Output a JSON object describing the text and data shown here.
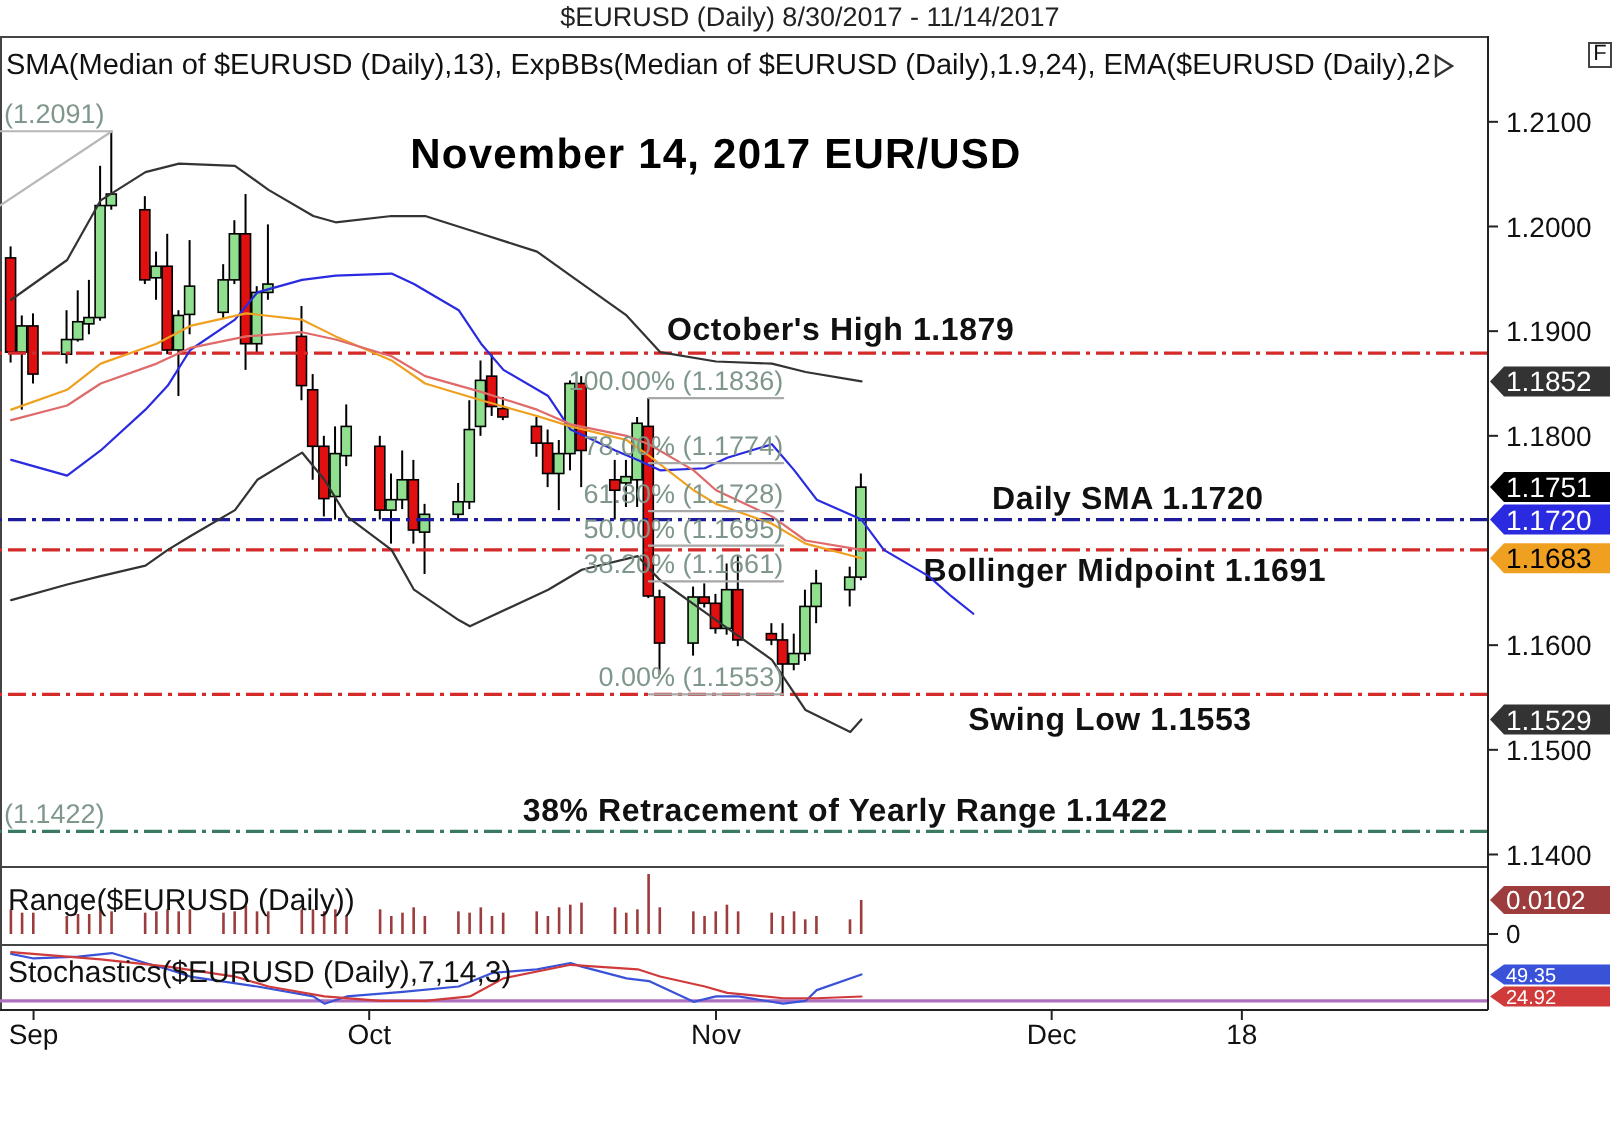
{
  "chart_data": [
    {
      "type": "candlestick",
      "title": "$EURUSD (Daily) 8/30/2017 - 11/14/2017",
      "subtitle": "November 14, 2017 EUR/USD",
      "annotations": [
        "SMA(Median of $EURUSD (Daily),13), ExpBBs(Median of $EURUSD (Daily),1.9,24), EMA($EURUSD (Daily),2",
        "F",
        {
          "text": "(1.2091)",
          "x": "2017-08-29",
          "y": 1.2091
        },
        {
          "text": "(1.1422)",
          "x": "2017-08-29",
          "y": 1.1422
        },
        {
          "text": "100.00% (1.1836)",
          "x": "2017-11-07",
          "y": 1.1836
        },
        {
          "text": "78.00% (1.1774)",
          "x": "2017-11-07",
          "y": 1.1774
        },
        {
          "text": "61.80% (1.1728)",
          "x": "2017-11-07",
          "y": 1.1728
        },
        {
          "text": "50.00% (1.1695)",
          "x": "2017-11-07",
          "y": 1.1695
        },
        {
          "text": "38.20% (1.1661)",
          "x": "2017-11-07",
          "y": 1.1661
        },
        {
          "text": "0.00% (1.1553)",
          "x": "2017-11-07",
          "y": 1.1553
        }
      ],
      "x": [
        "2017-08-30",
        "2017-08-31",
        "2017-09-01",
        "2017-09-04",
        "2017-09-05",
        "2017-09-06",
        "2017-09-07",
        "2017-09-08",
        "2017-09-11",
        "2017-09-12",
        "2017-09-13",
        "2017-09-14",
        "2017-09-15",
        "2017-09-18",
        "2017-09-19",
        "2017-09-20",
        "2017-09-21",
        "2017-09-22",
        "2017-09-25",
        "2017-09-26",
        "2017-09-27",
        "2017-09-28",
        "2017-09-29",
        "2017-10-02",
        "2017-10-03",
        "2017-10-04",
        "2017-10-05",
        "2017-10-06",
        "2017-10-09",
        "2017-10-10",
        "2017-10-11",
        "2017-10-12",
        "2017-10-13",
        "2017-10-16",
        "2017-10-17",
        "2017-10-18",
        "2017-10-19",
        "2017-10-20",
        "2017-10-23",
        "2017-10-24",
        "2017-10-25",
        "2017-10-26",
        "2017-10-27",
        "2017-10-30",
        "2017-10-31",
        "2017-11-01",
        "2017-11-02",
        "2017-11-03",
        "2017-11-06",
        "2017-11-07",
        "2017-11-08",
        "2017-11-09",
        "2017-11-10",
        "2017-11-13",
        "2017-11-14"
      ],
      "ohlc": [
        [
          1.197,
          1.1981,
          1.187,
          1.188
        ],
        [
          1.188,
          1.1915,
          1.1825,
          1.1905
        ],
        [
          1.1905,
          1.1917,
          1.185,
          1.1859
        ],
        [
          1.1878,
          1.192,
          1.1869,
          1.1892
        ],
        [
          1.1892,
          1.1939,
          1.189,
          1.1909
        ],
        [
          1.1907,
          1.1949,
          1.1897,
          1.1913
        ],
        [
          1.1913,
          1.2058,
          1.191,
          1.202
        ],
        [
          1.202,
          1.2091,
          1.2016,
          1.2031
        ],
        [
          1.2016,
          1.2029,
          1.1945,
          1.1949
        ],
        [
          1.1951,
          1.1976,
          1.193,
          1.1962
        ],
        [
          1.1962,
          1.1993,
          1.1878,
          1.1882
        ],
        [
          1.1882,
          1.192,
          1.1838,
          1.1915
        ],
        [
          1.1916,
          1.1987,
          1.1897,
          1.1943
        ],
        [
          1.1918,
          1.1964,
          1.1912,
          1.1949
        ],
        [
          1.1949,
          1.2006,
          1.1945,
          1.1993
        ],
        [
          1.1993,
          1.2031,
          1.1863,
          1.1888
        ],
        [
          1.1888,
          1.1943,
          1.1878,
          1.1937
        ],
        [
          1.1937,
          1.2002,
          1.193,
          1.1945
        ],
        [
          1.1895,
          1.1924,
          1.1834,
          1.1848
        ],
        [
          1.1844,
          1.1859,
          1.1758,
          1.179
        ],
        [
          1.179,
          1.18,
          1.1723,
          1.174
        ],
        [
          1.1742,
          1.1809,
          1.172,
          1.1783
        ],
        [
          1.1781,
          1.183,
          1.1771,
          1.1809
        ],
        [
          1.179,
          1.18,
          1.172,
          1.1729
        ],
        [
          1.1729,
          1.1764,
          1.1697,
          1.1739
        ],
        [
          1.1739,
          1.1786,
          1.173,
          1.1758
        ],
        [
          1.1758,
          1.1777,
          1.1697,
          1.171
        ],
        [
          1.1708,
          1.1735,
          1.1668,
          1.1725
        ],
        [
          1.1725,
          1.1755,
          1.172,
          1.1737
        ],
        [
          1.1737,
          1.1834,
          1.173,
          1.1806
        ],
        [
          1.1809,
          1.1872,
          1.18,
          1.1853
        ],
        [
          1.1857,
          1.1879,
          1.1819,
          1.1828
        ],
        [
          1.1826,
          1.1837,
          1.1815,
          1.1818
        ],
        [
          1.1809,
          1.1818,
          1.178,
          1.1793
        ],
        [
          1.1793,
          1.1806,
          1.1751,
          1.1764
        ],
        [
          1.1764,
          1.1796,
          1.1729,
          1.1783
        ],
        [
          1.1783,
          1.1853,
          1.1767,
          1.185
        ],
        [
          1.185,
          1.1857,
          1.1751,
          1.1786
        ],
        [
          1.1758,
          1.1777,
          1.172,
          1.1748
        ],
        [
          1.1755,
          1.1777,
          1.1732,
          1.1761
        ],
        [
          1.1758,
          1.1818,
          1.1732,
          1.1812
        ],
        [
          1.1809,
          1.1836,
          1.1645,
          1.1647
        ],
        [
          1.1646,
          1.1653,
          1.1572,
          1.1602
        ],
        [
          1.1602,
          1.1656,
          1.159,
          1.1646
        ],
        [
          1.1646,
          1.1659,
          1.1636,
          1.164
        ],
        [
          1.164,
          1.1649,
          1.1611,
          1.1616
        ],
        [
          1.1616,
          1.1678,
          1.161,
          1.1653
        ],
        [
          1.1653,
          1.1685,
          1.1599,
          1.1605
        ],
        [
          1.1611,
          1.1621,
          1.16,
          1.1605
        ],
        [
          1.1605,
          1.1621,
          1.1553,
          1.1582
        ],
        [
          1.1582,
          1.1611,
          1.1576,
          1.1592
        ],
        [
          1.1592,
          1.1653,
          1.1585,
          1.1637
        ],
        [
          1.1637,
          1.1672,
          1.1621,
          1.1659
        ],
        [
          1.1653,
          1.1675,
          1.1637,
          1.1665
        ],
        [
          1.1665,
          1.1764,
          1.1662,
          1.1751
        ]
      ],
      "color": "#000000",
      "colors": [
        "#e01010",
        "#8fdf8f",
        "#e01010",
        "#8fdf8f",
        "#8fdf8f",
        "#8fdf8f",
        "#8fdf8f",
        "#8fdf8f",
        "#e01010",
        "#8fdf8f",
        "#e01010",
        "#8fdf8f",
        "#8fdf8f",
        "#8fdf8f",
        "#8fdf8f",
        "#e01010",
        "#8fdf8f",
        "#8fdf8f",
        "#e01010",
        "#e01010",
        "#e01010",
        "#8fdf8f",
        "#8fdf8f",
        "#e01010",
        "#8fdf8f",
        "#8fdf8f",
        "#e01010",
        "#8fdf8f",
        "#8fdf8f",
        "#8fdf8f",
        "#8fdf8f",
        "#e01010",
        "#e01010",
        "#e01010",
        "#e01010",
        "#8fdf8f",
        "#8fdf8f",
        "#e01010",
        "#e01010",
        "#8fdf8f",
        "#8fdf8f",
        "#e01010",
        "#e01010",
        "#8fdf8f",
        "#e01010",
        "#e01010",
        "#8fdf8f",
        "#e01010",
        "#e01010",
        "#e01010",
        "#8fdf8f",
        "#8fdf8f",
        "#8fdf8f",
        "#8fdf8f",
        "#8fdf8f"
      ],
      "series": [
        {
          "type": "line",
          "color": "#333333",
          "x": [
            "2017-08-30",
            "2017-09-04",
            "2017-09-07",
            "2017-09-11",
            "2017-09-14",
            "2017-09-19",
            "2017-09-22",
            "2017-09-26",
            "2017-09-28",
            "2017-10-03",
            "2017-10-06",
            "2017-10-11",
            "2017-10-16",
            "2017-10-19",
            "2017-10-24",
            "2017-10-27",
            "2017-11-01",
            "2017-11-06",
            "2017-11-09",
            "2017-11-14"
          ],
          "values": [
            1.193,
            1.1968,
            1.2025,
            1.2052,
            1.206,
            1.2058,
            1.2035,
            1.201,
            1.2004,
            1.201,
            1.201,
            1.1993,
            1.1976,
            1.1953,
            1.1915,
            1.188,
            1.1871,
            1.1869,
            1.1861,
            1.1852
          ]
        },
        {
          "type": "line",
          "color": "#333333",
          "x": [
            "2017-08-30",
            "2017-09-04",
            "2017-09-07",
            "2017-09-11",
            "2017-09-13",
            "2017-09-15",
            "2017-09-19",
            "2017-09-21",
            "2017-09-25",
            "2017-09-27",
            "2017-09-29",
            "2017-10-03",
            "2017-10-05",
            "2017-10-09",
            "2017-10-10",
            "2017-10-12",
            "2017-10-17",
            "2017-10-20",
            "2017-10-25",
            "2017-10-27",
            "2017-11-01",
            "2017-11-06",
            "2017-11-09",
            "2017-11-13",
            "2017-11-14"
          ],
          "values": [
            1.1643,
            1.1658,
            1.1666,
            1.1676,
            1.1691,
            1.1704,
            1.1729,
            1.1758,
            1.1784,
            1.1758,
            1.1723,
            1.1691,
            1.1653,
            1.1624,
            1.1618,
            1.1628,
            1.1653,
            1.1672,
            1.1685,
            1.1662,
            1.1624,
            1.1586,
            1.1538,
            1.1517,
            1.1529
          ]
        },
        {
          "type": "line",
          "color": "#2a2ae0",
          "x": [
            "2017-08-30",
            "2017-09-04",
            "2017-09-07",
            "2017-09-11",
            "2017-09-13",
            "2017-09-15",
            "2017-09-19",
            "2017-09-21",
            "2017-09-25",
            "2017-09-28",
            "2017-10-03",
            "2017-10-05",
            "2017-10-09",
            "2017-10-11",
            "2017-10-13",
            "2017-10-17",
            "2017-10-19",
            "2017-10-23",
            "2017-10-25",
            "2017-10-27",
            "2017-10-31",
            "2017-11-02",
            "2017-11-06",
            "2017-11-08",
            "2017-11-10",
            "2017-11-14",
            "2017-11-16",
            "2017-11-20",
            "2017-11-22",
            "2017-11-24"
          ],
          "values": [
            1.1777,
            1.1762,
            1.1786,
            1.1825,
            1.1848,
            1.1882,
            1.1911,
            1.1937,
            1.1949,
            1.1953,
            1.1955,
            1.1945,
            1.192,
            1.1888,
            1.1863,
            1.1838,
            1.1806,
            1.1786,
            1.1777,
            1.1767,
            1.1769,
            1.1779,
            1.1792,
            1.1767,
            1.1739,
            1.172,
            1.1691,
            1.1666,
            1.1647,
            1.163
          ]
        },
        {
          "type": "line",
          "color": "#f0a020",
          "x": [
            "2017-08-30",
            "2017-09-04",
            "2017-09-07",
            "2017-09-12",
            "2017-09-15",
            "2017-09-20",
            "2017-09-25",
            "2017-09-28",
            "2017-10-03",
            "2017-10-06",
            "2017-10-11",
            "2017-10-16",
            "2017-10-19",
            "2017-10-24",
            "2017-10-26",
            "2017-10-30",
            "2017-11-01",
            "2017-11-06",
            "2017-11-09",
            "2017-11-14"
          ],
          "values": [
            1.1825,
            1.1844,
            1.1869,
            1.1888,
            1.1905,
            1.1917,
            1.1911,
            1.1895,
            1.1872,
            1.185,
            1.1834,
            1.1819,
            1.1809,
            1.1796,
            1.1781,
            1.1748,
            1.1735,
            1.1716,
            1.1697,
            1.1683
          ]
        },
        {
          "type": "line",
          "color": "#e06a6a",
          "x": [
            "2017-08-30",
            "2017-09-04",
            "2017-09-07",
            "2017-09-12",
            "2017-09-15",
            "2017-09-20",
            "2017-09-25",
            "2017-09-28",
            "2017-10-03",
            "2017-10-06",
            "2017-10-11",
            "2017-10-16",
            "2017-10-19",
            "2017-10-24",
            "2017-10-26",
            "2017-10-30",
            "2017-11-01",
            "2017-11-06",
            "2017-11-09",
            "2017-11-14"
          ],
          "values": [
            1.1815,
            1.1829,
            1.185,
            1.1869,
            1.1884,
            1.1895,
            1.1899,
            1.1892,
            1.1876,
            1.1857,
            1.1842,
            1.1825,
            1.1811,
            1.18,
            1.1792,
            1.1767,
            1.1748,
            1.1723,
            1.17,
            1.1691
          ]
        },
        {
          "type": "line",
          "color": "#a8a8a8",
          "x": [
            "2017-10-26",
            "2017-11-07"
          ],
          "values": [
            1.1836,
            1.1836
          ]
        },
        {
          "type": "line",
          "color": "#a8a8a8",
          "x": [
            "2017-10-26",
            "2017-11-07"
          ],
          "values": [
            1.1774,
            1.1774
          ]
        },
        {
          "type": "line",
          "color": "#a8a8a8",
          "x": [
            "2017-10-26",
            "2017-11-07"
          ],
          "values": [
            1.1728,
            1.1728
          ]
        },
        {
          "type": "line",
          "color": "#a8a8a8",
          "x": [
            "2017-10-26",
            "2017-11-07"
          ],
          "values": [
            1.1695,
            1.1695
          ]
        },
        {
          "type": "line",
          "color": "#a8a8a8",
          "x": [
            "2017-10-26",
            "2017-11-07"
          ],
          "values": [
            1.1661,
            1.1661
          ]
        },
        {
          "type": "line",
          "color": "#a8a8a8",
          "x": [
            "2017-10-26",
            "2017-11-07"
          ],
          "values": [
            1.1553,
            1.1553
          ]
        },
        {
          "type": "line",
          "color": "#b8b8b8",
          "x": [
            "2017-08-29",
            "2017-09-08"
          ],
          "values": [
            1.2091,
            1.2091
          ]
        },
        {
          "type": "line",
          "color": "#b8b8b8",
          "x": [
            "2017-08-29",
            "2017-09-08"
          ],
          "values": [
            1.202,
            1.2091
          ]
        }
      ],
      "ref_lines": [
        {
          "axis": "y",
          "value": 1.1879,
          "label": "October's High 1.1879",
          "color": "#d42a2a",
          "line_style": "dashdot"
        },
        {
          "axis": "y",
          "value": 1.172,
          "label": "Daily SMA 1.1720",
          "color": "#1c1c9a",
          "line_style": "dashdot"
        },
        {
          "axis": "y",
          "value": 1.1691,
          "label": "Bollinger Midpoint 1.1691",
          "color": "#d42a2a",
          "line_style": "dashdot"
        },
        {
          "axis": "y",
          "value": 1.1553,
          "label": "Swing Low 1.1553",
          "color": "#d42a2a",
          "line_style": "dashdot"
        },
        {
          "axis": "y",
          "value": 1.1422,
          "label": "38% Retracement of Yearly Range 1.1422",
          "color": "#3a7a60",
          "line_style": "dashdot"
        }
      ],
      "xlim": [
        "2017-08-29",
        "2018-01-09"
      ],
      "ylim": [
        1.1389,
        1.2182
      ],
      "yticks": [
        {
          "value": 1.14,
          "label": "1.1400"
        },
        {
          "value": 1.15,
          "label": "1.1500"
        },
        1.1529,
        {
          "value": 1.16,
          "label": "1.1600"
        },
        1.1683,
        {
          "value": 1.172,
          "label": "1.1720"
        },
        1.1751,
        {
          "value": 1.18,
          "label": "1.1800"
        },
        1.1852,
        {
          "value": 1.19,
          "label": "1.1900"
        },
        {
          "value": 1.2,
          "label": "1.2000"
        },
        {
          "value": 1.21,
          "label": "1.2100"
        }
      ],
      "tick_labels": "y"
    },
    {
      "type": "bar",
      "title": "Range($EURUSD (Daily))",
      "color": "#9c3c3c",
      "x": [
        "2017-08-30",
        "2017-08-31",
        "2017-09-01",
        "2017-09-04",
        "2017-09-05",
        "2017-09-06",
        "2017-09-07",
        "2017-09-08",
        "2017-09-11",
        "2017-09-12",
        "2017-09-13",
        "2017-09-14",
        "2017-09-15",
        "2017-09-18",
        "2017-09-19",
        "2017-09-20",
        "2017-09-21",
        "2017-09-22",
        "2017-09-25",
        "2017-09-26",
        "2017-09-27",
        "2017-09-28",
        "2017-09-29",
        "2017-10-02",
        "2017-10-03",
        "2017-10-04",
        "2017-10-05",
        "2017-10-06",
        "2017-10-09",
        "2017-10-10",
        "2017-10-11",
        "2017-10-12",
        "2017-10-13",
        "2017-10-16",
        "2017-10-17",
        "2017-10-18",
        "2017-10-19",
        "2017-10-20",
        "2017-10-23",
        "2017-10-24",
        "2017-10-25",
        "2017-10-26",
        "2017-10-27",
        "2017-10-30",
        "2017-10-31",
        "2017-11-01",
        "2017-11-02",
        "2017-11-03",
        "2017-11-06",
        "2017-11-07",
        "2017-11-08",
        "2017-11-09",
        "2017-11-10",
        "2017-11-13",
        "2017-11-14"
      ],
      "values": [
        0.0074,
        0.0064,
        0.0064,
        0.0054,
        0.006,
        0.006,
        0.0084,
        0.0068,
        0.0064,
        0.0068,
        0.0074,
        0.0068,
        0.0074,
        0.0064,
        0.0068,
        0.0084,
        0.0068,
        0.0068,
        0.0074,
        0.0074,
        0.0068,
        0.0074,
        0.0054,
        0.0074,
        0.0054,
        0.0064,
        0.008,
        0.0054,
        0.0068,
        0.0064,
        0.008,
        0.0054,
        0.0064,
        0.0068,
        0.0054,
        0.008,
        0.0088,
        0.0094,
        0.008,
        0.0064,
        0.0074,
        0.018,
        0.008,
        0.0068,
        0.0054,
        0.0068,
        0.0088,
        0.0068,
        0.0064,
        0.0054,
        0.0068,
        0.0044,
        0.0054,
        0.0044,
        0.0102
      ],
      "xlim": [
        "2017-08-29",
        "2018-01-09"
      ],
      "ylim": [
        -0.003,
        0.0204
      ],
      "yticks": [
        0,
        0.0102
      ],
      "tick_labels": "y"
    },
    {
      "type": "line",
      "title": "Stochastics($EURUSD (Daily),7,14,3)",
      "series": [
        {
          "color": "#3a52d8",
          "x": [
            "2017-08-30",
            "2017-09-01",
            "2017-09-05",
            "2017-09-08",
            "2017-09-11",
            "2017-09-13",
            "2017-09-15",
            "2017-09-21",
            "2017-09-26",
            "2017-09-27",
            "2017-09-29",
            "2017-10-04",
            "2017-10-09",
            "2017-10-12",
            "2017-10-16",
            "2017-10-19",
            "2017-10-20",
            "2017-10-24",
            "2017-10-26",
            "2017-10-30",
            "2017-11-01",
            "2017-11-03",
            "2017-11-07",
            "2017-11-09",
            "2017-11-10",
            "2017-11-14"
          ],
          "values": [
            72,
            67,
            69,
            73,
            62,
            55,
            47,
            36,
            25,
            17,
            25,
            30,
            36,
            51,
            55,
            62,
            58,
            45,
            42,
            19,
            25,
            25,
            17,
            20,
            32,
            49.35
          ]
        },
        {
          "color": "#d03a3a",
          "x": [
            "2017-08-30",
            "2017-09-04",
            "2017-09-07",
            "2017-09-13",
            "2017-09-19",
            "2017-09-22",
            "2017-09-27",
            "2017-10-02",
            "2017-10-06",
            "2017-10-10",
            "2017-10-13",
            "2017-10-19",
            "2017-10-25",
            "2017-10-27",
            "2017-10-31",
            "2017-11-02",
            "2017-11-07",
            "2017-11-10",
            "2017-11-14"
          ],
          "values": [
            74,
            69,
            66,
            58,
            47,
            36,
            25,
            20,
            20,
            25,
            45,
            60,
            55,
            47,
            36,
            29,
            23,
            23,
            24.92
          ]
        }
      ],
      "ref_lines": [
        {
          "axis": "y",
          "value": 20,
          "color": "#b070c0"
        }
      ],
      "xlim": [
        "2017-08-29",
        "2018-01-09"
      ],
      "ylim": [
        10,
        83
      ],
      "yticks": [
        24.92,
        49.35
      ],
      "xticks": [
        {
          "value": "2017-09-01",
          "label": "Sep"
        },
        {
          "value": "2017-10-01",
          "label": "Oct"
        },
        {
          "value": "2017-11-01",
          "label": "Nov"
        },
        {
          "value": "2017-12-01",
          "label": "Dec"
        },
        {
          "value": "2017-12-18",
          "label": "18"
        }
      ]
    }
  ]
}
